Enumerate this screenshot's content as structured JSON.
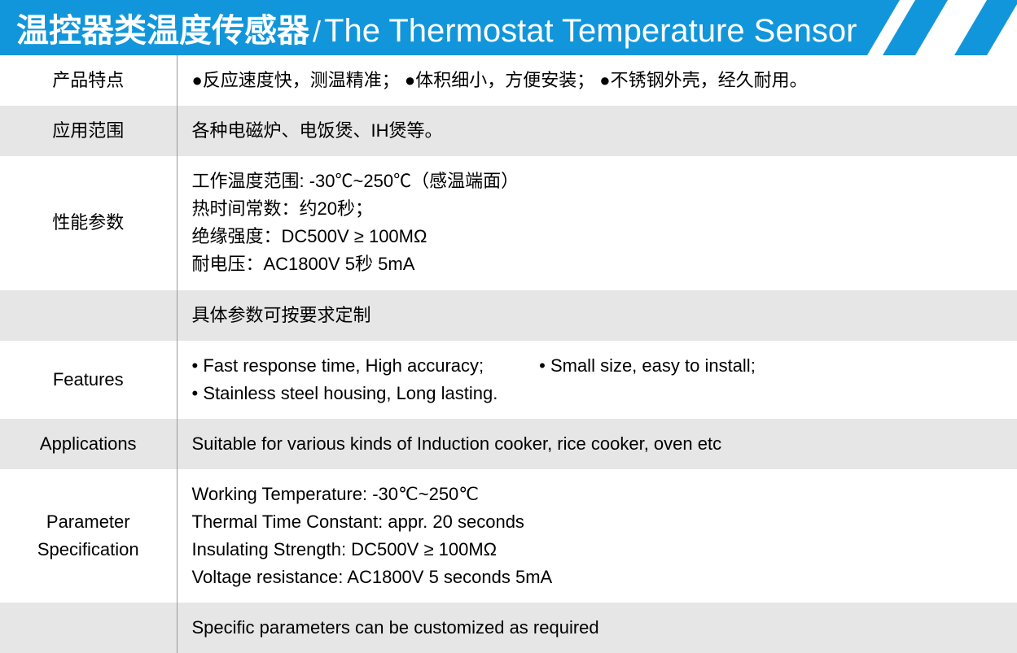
{
  "header": {
    "title_cn": "温控器类温度传感器",
    "title_sep": "/",
    "title_en": "The Thermostat Temperature Sensor",
    "bg_color": "#1296db",
    "text_color": "#ffffff"
  },
  "rows": [
    {
      "label": "产品特点",
      "value": "●反应速度快，测温精准；  ●体积细小，方便安装；  ●不锈钢外壳，经久耐用。",
      "alt": false
    },
    {
      "label": "应用范围",
      "value": "各种电磁炉、电饭煲、IH煲等。",
      "alt": true
    },
    {
      "label": "性能参数",
      "lines": [
        "工作温度范围: -30℃~250℃（感温端面）",
        "热时间常数：约20秒；",
        "绝缘强度：DC500V ≥  100MΩ",
        "耐电压：AC1800V   5秒   5mA"
      ],
      "alt": false
    },
    {
      "label": "",
      "value": "具体参数可按要求定制",
      "alt": true
    },
    {
      "label": "Features",
      "features_line1a": "• Fast response time, High accuracy;",
      "features_line1b": "• Small size, easy to install;",
      "features_line2": "• Stainless steel housing, Long lasting.",
      "alt": false
    },
    {
      "label": "Applications",
      "value": "Suitable for various kinds of Induction cooker, rice cooker, oven etc",
      "alt": true
    },
    {
      "label": "Parameter Specification",
      "lines": [
        "Working Temperature: -30℃~250℃",
        "Thermal Time Constant: appr. 20 seconds",
        "Insulating Strength: DC500V  ≥  100MΩ",
        "Voltage resistance: AC1800V   5 seconds   5mA"
      ],
      "alt": false
    },
    {
      "label": "",
      "value": "Specific parameters can be customized as required",
      "alt": true
    }
  ],
  "colors": {
    "row_bg": "#ffffff",
    "row_alt_bg": "#e6e6e6",
    "divider": "#999999",
    "text": "#000000"
  },
  "typography": {
    "title_cn_size": 40,
    "title_en_size": 40,
    "body_size": 22
  }
}
